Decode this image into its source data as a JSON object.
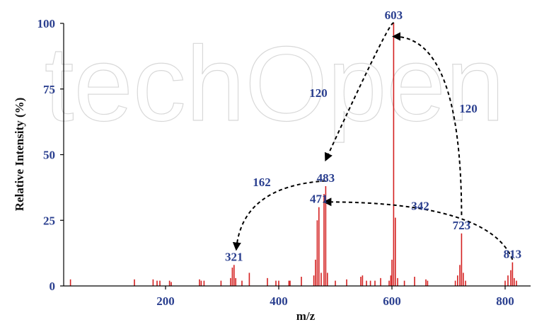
{
  "chart_data": {
    "type": "bar",
    "title": "",
    "xlabel": "m/z",
    "ylabel": "Relative Intensity (%)",
    "xlim": [
      20,
      845
    ],
    "ylim": [
      0,
      100
    ],
    "x_ticks": [
      200,
      400,
      600,
      800
    ],
    "y_ticks": [
      0,
      25,
      50,
      75,
      100
    ],
    "grid": false,
    "bar_color": "#d42020",
    "label_color": "#2a3f8f",
    "arrow_color": "#000000",
    "watermark_text": "techOpen",
    "peaks": [
      {
        "mz": 32,
        "intensity": 2.5
      },
      {
        "mz": 145,
        "intensity": 2.5
      },
      {
        "mz": 178,
        "intensity": 2.5
      },
      {
        "mz": 185,
        "intensity": 2
      },
      {
        "mz": 190,
        "intensity": 2
      },
      {
        "mz": 207,
        "intensity": 2
      },
      {
        "mz": 210,
        "intensity": 1.5
      },
      {
        "mz": 260,
        "intensity": 2.5
      },
      {
        "mz": 263,
        "intensity": 2
      },
      {
        "mz": 268,
        "intensity": 2
      },
      {
        "mz": 298,
        "intensity": 2
      },
      {
        "mz": 315,
        "intensity": 3
      },
      {
        "mz": 318,
        "intensity": 7
      },
      {
        "mz": 321,
        "intensity": 8
      },
      {
        "mz": 324,
        "intensity": 3
      },
      {
        "mz": 335,
        "intensity": 2
      },
      {
        "mz": 348,
        "intensity": 5
      },
      {
        "mz": 380,
        "intensity": 3
      },
      {
        "mz": 395,
        "intensity": 2
      },
      {
        "mz": 400,
        "intensity": 2
      },
      {
        "mz": 418,
        "intensity": 2
      },
      {
        "mz": 420,
        "intensity": 2
      },
      {
        "mz": 440,
        "intensity": 3.5
      },
      {
        "mz": 462,
        "intensity": 4
      },
      {
        "mz": 465,
        "intensity": 10
      },
      {
        "mz": 468,
        "intensity": 25
      },
      {
        "mz": 471,
        "intensity": 30
      },
      {
        "mz": 475,
        "intensity": 5
      },
      {
        "mz": 480,
        "intensity": 35
      },
      {
        "mz": 483,
        "intensity": 38
      },
      {
        "mz": 486,
        "intensity": 5
      },
      {
        "mz": 500,
        "intensity": 2
      },
      {
        "mz": 520,
        "intensity": 2.5
      },
      {
        "mz": 545,
        "intensity": 3.5
      },
      {
        "mz": 548,
        "intensity": 4
      },
      {
        "mz": 555,
        "intensity": 2
      },
      {
        "mz": 562,
        "intensity": 2
      },
      {
        "mz": 570,
        "intensity": 2
      },
      {
        "mz": 580,
        "intensity": 3
      },
      {
        "mz": 595,
        "intensity": 2
      },
      {
        "mz": 598,
        "intensity": 4
      },
      {
        "mz": 600,
        "intensity": 10
      },
      {
        "mz": 603,
        "intensity": 100
      },
      {
        "mz": 606,
        "intensity": 26
      },
      {
        "mz": 610,
        "intensity": 3
      },
      {
        "mz": 622,
        "intensity": 2
      },
      {
        "mz": 640,
        "intensity": 3.5
      },
      {
        "mz": 660,
        "intensity": 2.5
      },
      {
        "mz": 663,
        "intensity": 2
      },
      {
        "mz": 712,
        "intensity": 2
      },
      {
        "mz": 716,
        "intensity": 4
      },
      {
        "mz": 720,
        "intensity": 8
      },
      {
        "mz": 723,
        "intensity": 20
      },
      {
        "mz": 726,
        "intensity": 5
      },
      {
        "mz": 730,
        "intensity": 2
      },
      {
        "mz": 800,
        "intensity": 2
      },
      {
        "mz": 805,
        "intensity": 4
      },
      {
        "mz": 810,
        "intensity": 6
      },
      {
        "mz": 813,
        "intensity": 9
      },
      {
        "mz": 816,
        "intensity": 3
      },
      {
        "mz": 820,
        "intensity": 2
      }
    ],
    "peak_labels": [
      {
        "text": "603",
        "mz": 603,
        "intensity": 100
      },
      {
        "text": "483",
        "mz": 483,
        "intensity": 38
      },
      {
        "text": "471",
        "mz": 471,
        "intensity": 30
      },
      {
        "text": "321",
        "mz": 321,
        "intensity": 8
      },
      {
        "text": "723",
        "mz": 723,
        "intensity": 20
      },
      {
        "text": "813",
        "mz": 813,
        "intensity": 9
      }
    ],
    "loss_labels": [
      {
        "text": "120",
        "mz": 470,
        "intensity": 72
      },
      {
        "text": "120",
        "mz": 735,
        "intensity": 66
      },
      {
        "text": "162",
        "mz": 370,
        "intensity": 38
      },
      {
        "text": "342",
        "mz": 650,
        "intensity": 29
      }
    ],
    "fragmentation_arrows": [
      {
        "from": [
          603,
          100
        ],
        "to": [
          483,
          48
        ],
        "apex": [
          600,
          103
        ]
      },
      {
        "from": [
          723,
          27
        ],
        "to": [
          603,
          95
        ],
        "apex": [
          722,
          95
        ]
      },
      {
        "from": [
          483,
          40
        ],
        "to": [
          325,
          14
        ],
        "apex": [
          335,
          38
        ]
      },
      {
        "from": [
          813,
          10
        ],
        "to": [
          481,
          32
        ],
        "apex": [
          772,
          32
        ]
      }
    ]
  }
}
